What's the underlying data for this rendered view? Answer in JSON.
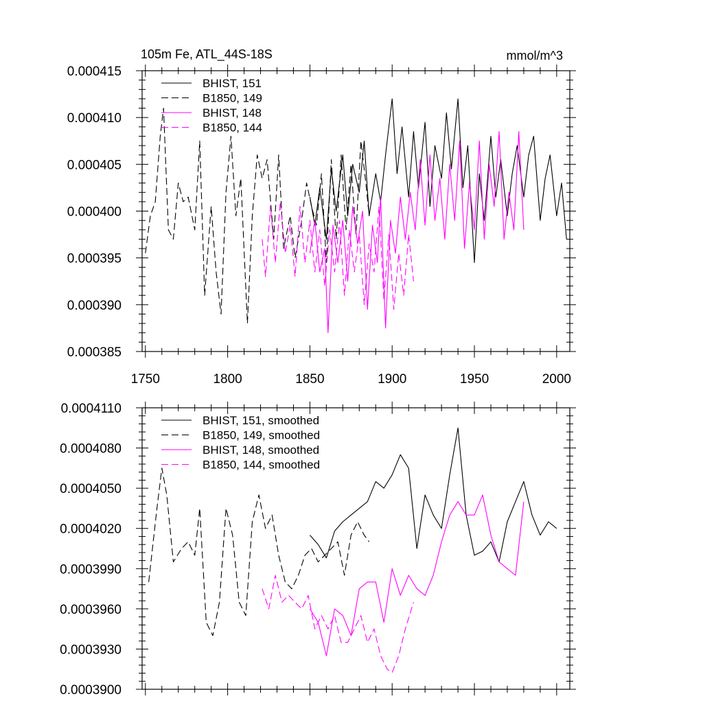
{
  "chart_data": [
    {
      "type": "line",
      "title": "105m Fe, ATL_44S-18S",
      "units": "mmol/m^3",
      "xlim": [
        1748,
        2008
      ],
      "ylim": [
        0.000385,
        0.000415
      ],
      "xticks": [
        1750,
        1800,
        1850,
        1900,
        1950,
        2000
      ],
      "xtick_labels": [
        "1750",
        "1800",
        "1850",
        "1900",
        "1950",
        "2000"
      ],
      "yticks": [
        0.000385,
        0.00039,
        0.000395,
        0.0004,
        0.000405,
        0.00041,
        0.000415
      ],
      "ytick_labels": [
        "0.000385",
        "0.000390",
        "0.000395",
        "0.000400",
        "0.000405",
        "0.000410",
        "0.000415"
      ],
      "legend_position": "top-left",
      "series": [
        {
          "name": "BHIST, 151",
          "color": "#000000",
          "dash": "solid",
          "x": [
            1850,
            1853,
            1856,
            1860,
            1863,
            1866,
            1870,
            1873,
            1876,
            1880,
            1883,
            1886,
            1890,
            1893,
            1896,
            1900,
            1903,
            1906,
            1910,
            1913,
            1916,
            1920,
            1923,
            1926,
            1930,
            1933,
            1936,
            1940,
            1943,
            1946,
            1950,
            1953,
            1956,
            1960,
            1963,
            1966,
            1970,
            1973,
            1976,
            1980,
            1983,
            1986,
            1990,
            1993,
            1996,
            2000,
            2003,
            2006
          ],
          "y": [
            0.0004015,
            0.0003985,
            0.0004025,
            0.000397,
            0.0004045,
            0.0004,
            0.000406,
            0.0003995,
            0.000405,
            0.000402,
            0.0004075,
            0.0003995,
            0.000404,
            0.000401,
            0.000406,
            0.000412,
            0.000404,
            0.000409,
            0.0004015,
            0.0004085,
            0.0004025,
            0.0004095,
            0.0004005,
            0.000407,
            0.0004035,
            0.0004105,
            0.0004045,
            0.000412,
            0.0004025,
            0.000407,
            0.0003945,
            0.000404,
            0.000399,
            0.000408,
            0.0004015,
            0.0004055,
            0.0003995,
            0.000404,
            0.000407,
            0.0004015,
            0.000406,
            0.000408,
            0.000399,
            0.0004035,
            0.000406,
            0.0003995,
            0.000403,
            0.000397
          ]
        },
        {
          "name": "B1850, 149",
          "color": "#000000",
          "dash": "dashed",
          "x": [
            1750,
            1753,
            1756,
            1759,
            1761,
            1764,
            1767,
            1770,
            1773,
            1776,
            1780,
            1783,
            1786,
            1790,
            1793,
            1796,
            1799,
            1802,
            1805,
            1808,
            1812,
            1815,
            1818,
            1821,
            1824,
            1828,
            1831,
            1834,
            1838,
            1841,
            1845,
            1848,
            1851,
            1854,
            1857,
            1860,
            1863,
            1866,
            1869,
            1872,
            1875,
            1878,
            1881,
            1884,
            1886
          ],
          "y": [
            0.0003955,
            0.0003995,
            0.000401,
            0.000408,
            0.000411,
            0.000398,
            0.000397,
            0.000403,
            0.000401,
            0.0004015,
            0.000398,
            0.0004075,
            0.000391,
            0.0004005,
            0.0003935,
            0.000389,
            0.000402,
            0.000408,
            0.0003995,
            0.0004035,
            0.000388,
            0.0003995,
            0.000406,
            0.0004035,
            0.0004055,
            0.000397,
            0.000406,
            0.000396,
            0.0003995,
            0.000395,
            0.000399,
            0.000403,
            0.0004005,
            0.0003985,
            0.000404,
            0.0003945,
            0.0004055,
            0.000397,
            0.000406,
            0.000398,
            0.000405,
            0.0003975,
            0.0004075,
            0.000403,
            0.0003995
          ]
        },
        {
          "name": "BHIST, 148",
          "color": "#ff00ff",
          "dash": "solid",
          "x": [
            1850,
            1853,
            1856,
            1859,
            1861,
            1864,
            1867,
            1870,
            1873,
            1876,
            1879,
            1882,
            1885,
            1888,
            1891,
            1893,
            1896,
            1899,
            1902,
            1905,
            1908,
            1911,
            1914,
            1917,
            1920,
            1923,
            1926,
            1929,
            1932,
            1935,
            1938,
            1941,
            1944,
            1947,
            1950,
            1953,
            1956,
            1959,
            1962,
            1965,
            1968,
            1971,
            1974,
            1977,
            1980
          ],
          "y": [
            0.0003955,
            0.000399,
            0.0003935,
            0.000396,
            0.000387,
            0.0003985,
            0.0003945,
            0.000399,
            0.0003925,
            0.0004005,
            0.0003965,
            0.0004,
            0.0003895,
            0.0003985,
            0.0003945,
            0.0004015,
            0.0003875,
            0.000399,
            0.0003955,
            0.0004015,
            0.000397,
            0.000402,
            0.000398,
            0.0004055,
            0.0003985,
            0.000406,
            0.000399,
            0.0004035,
            0.000397,
            0.000405,
            0.000399,
            0.0004075,
            0.000396,
            0.000403,
            0.000398,
            0.0004075,
            0.000397,
            0.000405,
            0.0004005,
            0.0004085,
            0.000397,
            0.000402,
            0.000398,
            0.0004085,
            0.000398
          ]
        },
        {
          "name": "B1850, 144",
          "color": "#ff00ff",
          "dash": "dashed",
          "x": [
            1821,
            1823,
            1826,
            1829,
            1832,
            1835,
            1838,
            1841,
            1844,
            1847,
            1850,
            1853,
            1856,
            1859,
            1862,
            1865,
            1868,
            1871,
            1874,
            1877,
            1880,
            1883,
            1886,
            1889,
            1892,
            1895,
            1898,
            1901,
            1904,
            1907,
            1910,
            1913
          ],
          "y": [
            0.000397,
            0.000393,
            0.0004005,
            0.0003945,
            0.000401,
            0.0003955,
            0.0003985,
            0.000393,
            0.0004005,
            0.0003945,
            0.000399,
            0.0003935,
            0.000398,
            0.000392,
            0.000398,
            0.0003935,
            0.000399,
            0.000391,
            0.000398,
            0.0003935,
            0.0003975,
            0.00039,
            0.0003965,
            0.0003935,
            0.0004005,
            0.0003905,
            0.0003975,
            0.0003895,
            0.0003955,
            0.000391,
            0.0003975,
            0.0003925
          ]
        }
      ]
    },
    {
      "type": "line",
      "xlim": [
        1748,
        2008
      ],
      "ylim": [
        0.00039,
        0.000411
      ],
      "xticks": [
        1750,
        1800,
        1850,
        1900,
        1950,
        2000
      ],
      "yticks": [
        0.00039,
        0.000393,
        0.000396,
        0.000399,
        0.000402,
        0.000405,
        0.000408,
        0.000411
      ],
      "ytick_labels": [
        "0.0003900",
        "0.0003930",
        "0.0003960",
        "0.0003990",
        "0.0004020",
        "0.0004050",
        "0.0004080",
        "0.0004110"
      ],
      "legend_position": "top-left",
      "series": [
        {
          "name": "BHIST, 151, smoothed",
          "color": "#000000",
          "dash": "solid",
          "x": [
            1850,
            1855,
            1860,
            1865,
            1870,
            1875,
            1880,
            1885,
            1890,
            1895,
            1900,
            1905,
            1910,
            1915,
            1920,
            1925,
            1930,
            1935,
            1940,
            1945,
            1950,
            1955,
            1960,
            1965,
            1970,
            1975,
            1980,
            1985,
            1990,
            1995,
            2000
          ],
          "y": [
            0.0004015,
            0.0004008,
            0.0003998,
            0.0004018,
            0.0004025,
            0.000403,
            0.0004035,
            0.000404,
            0.0004055,
            0.000405,
            0.000406,
            0.0004075,
            0.0004065,
            0.0004005,
            0.0004045,
            0.000403,
            0.000402,
            0.000406,
            0.0004095,
            0.000403,
            0.0004,
            0.0004003,
            0.000401,
            0.0003995,
            0.0004025,
            0.000404,
            0.0004055,
            0.000403,
            0.0004015,
            0.0004025,
            0.000402
          ]
        },
        {
          "name": "B1850, 149, smoothed",
          "color": "#000000",
          "dash": "dashed",
          "x": [
            1752,
            1757,
            1760,
            1763,
            1767,
            1772,
            1776,
            1780,
            1783,
            1787,
            1791,
            1795,
            1799,
            1803,
            1807,
            1811,
            1815,
            1819,
            1823,
            1827,
            1831,
            1835,
            1839,
            1843,
            1847,
            1851,
            1855,
            1859,
            1863,
            1867,
            1871,
            1875,
            1879,
            1883,
            1886
          ],
          "y": [
            0.000398,
            0.0004035,
            0.0004065,
            0.0004045,
            0.0003995,
            0.0004005,
            0.000401,
            0.0004,
            0.0004035,
            0.000395,
            0.000394,
            0.0003965,
            0.0004035,
            0.0004015,
            0.0003965,
            0.0003955,
            0.0004025,
            0.0004045,
            0.000402,
            0.000403,
            0.0004,
            0.000398,
            0.0003975,
            0.0003985,
            0.0004,
            0.0004005,
            0.0003995,
            0.0004,
            0.0004005,
            0.000401,
            0.0003985,
            0.0004015,
            0.0004025,
            0.0004015,
            0.000401
          ]
        },
        {
          "name": "BHIST, 148, smoothed",
          "color": "#ff00ff",
          "dash": "solid",
          "x": [
            1850,
            1855,
            1860,
            1865,
            1870,
            1875,
            1880,
            1885,
            1890,
            1895,
            1900,
            1905,
            1910,
            1915,
            1920,
            1925,
            1930,
            1935,
            1940,
            1945,
            1950,
            1955,
            1960,
            1965,
            1970,
            1975,
            1980
          ],
          "y": [
            0.000396,
            0.000395,
            0.0003925,
            0.000396,
            0.0003955,
            0.000394,
            0.0003975,
            0.000398,
            0.000398,
            0.000395,
            0.000399,
            0.000397,
            0.0003985,
            0.0003975,
            0.000397,
            0.0003985,
            0.000401,
            0.000403,
            0.000404,
            0.000403,
            0.000403,
            0.0004045,
            0.0004015,
            0.0003995,
            0.000399,
            0.0003985,
            0.000404
          ]
        },
        {
          "name": "B1850, 144, smoothed",
          "color": "#ff00ff",
          "dash": "dashed",
          "x": [
            1821,
            1825,
            1829,
            1833,
            1837,
            1841,
            1845,
            1849,
            1853,
            1857,
            1861,
            1865,
            1869,
            1873,
            1877,
            1881,
            1885,
            1889,
            1893,
            1897,
            1900,
            1904,
            1908,
            1913
          ],
          "y": [
            0.0003975,
            0.000396,
            0.0003985,
            0.0003965,
            0.000397,
            0.0003965,
            0.000396,
            0.000397,
            0.0003945,
            0.0003955,
            0.0003945,
            0.0003955,
            0.0003935,
            0.0003935,
            0.0003945,
            0.0003955,
            0.0003935,
            0.0003945,
            0.0003925,
            0.0003915,
            0.00039125,
            0.0003925,
            0.0003945,
            0.0003965
          ]
        }
      ]
    }
  ]
}
